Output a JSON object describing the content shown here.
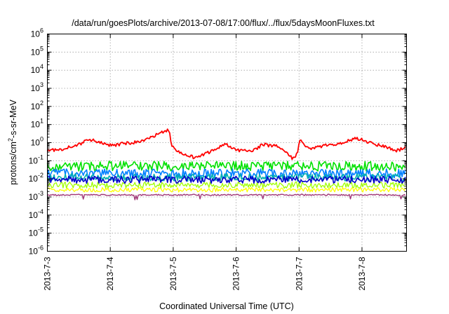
{
  "chart_data": {
    "type": "line",
    "title": "/data/run/goesPlots/archive/2013-07-08/17:00/flux/../flux/5daysMoonFluxes.txt",
    "xlabel": "Coordinated Universal Time (UTC)",
    "ylabel_parts": {
      "base": "protons/cm",
      "sup": "2",
      "rest": "-s-sr-MeV"
    },
    "y_scale": "log",
    "ylim": [
      1e-06,
      1000000.0
    ],
    "y_tick_labels": [
      {
        "base": "10",
        "exp": "-6",
        "value": 1e-06
      },
      {
        "base": "10",
        "exp": "-5",
        "value": 1e-05
      },
      {
        "base": "10",
        "exp": "-4",
        "value": 0.0001
      },
      {
        "base": "10",
        "exp": "-3",
        "value": 0.001
      },
      {
        "base": "10",
        "exp": "-2",
        "value": 0.01
      },
      {
        "base": "10",
        "exp": "-1",
        "value": 0.1
      },
      {
        "base": "10",
        "exp": "0",
        "value": 1
      },
      {
        "base": "10",
        "exp": "1",
        "value": 10
      },
      {
        "base": "10",
        "exp": "2",
        "value": 100
      },
      {
        "base": "10",
        "exp": "3",
        "value": 1000
      },
      {
        "base": "10",
        "exp": "4",
        "value": 10000
      },
      {
        "base": "10",
        "exp": "5",
        "value": 100000
      },
      {
        "base": "10",
        "exp": "6",
        "value": 1000000
      }
    ],
    "x_range": [
      "2013-07-03T00:00",
      "2013-07-08T17:00"
    ],
    "x_tick_labels": [
      {
        "label": "2013-7-3",
        "value": "2013-07-03T00:00"
      },
      {
        "label": "2013-7-4",
        "value": "2013-07-04T00:00"
      },
      {
        "label": "2013-7-5",
        "value": "2013-07-05T00:00"
      },
      {
        "label": "2013-7-6",
        "value": "2013-07-06T00:00"
      },
      {
        "label": "2013-7-7",
        "value": "2013-07-07T00:00"
      },
      {
        "label": "2013-7-8",
        "value": "2013-07-08T00:00"
      }
    ],
    "grid": true,
    "legend": "none",
    "series": [
      {
        "color": "#ff0000",
        "x": [
          "2013-07-03T00:00",
          "2013-07-03T06:00",
          "2013-07-03T12:00",
          "2013-07-03T16:00",
          "2013-07-03T20:00",
          "2013-07-04T00:00",
          "2013-07-04T06:00",
          "2013-07-04T12:00",
          "2013-07-04T18:00",
          "2013-07-04T21:00",
          "2013-07-04T22:30",
          "2013-07-04T23:30",
          "2013-07-05T03:00",
          "2013-07-05T08:00",
          "2013-07-05T14:00",
          "2013-07-05T20:00",
          "2013-07-06T00:00",
          "2013-07-06T06:00",
          "2013-07-06T10:00",
          "2013-07-06T16:00",
          "2013-07-06T22:00",
          "2013-07-06T23:40",
          "2013-07-07T00:15",
          "2013-07-07T04:00",
          "2013-07-07T10:00",
          "2013-07-07T16:00",
          "2013-07-07T22:00",
          "2013-07-08T04:00",
          "2013-07-08T09:00",
          "2013-07-08T13:00",
          "2013-07-08T17:00"
        ],
        "values": [
          0.35,
          0.45,
          0.8,
          1.5,
          1.0,
          0.7,
          0.9,
          1.2,
          3.0,
          4.5,
          5.0,
          0.6,
          0.25,
          0.15,
          0.3,
          0.9,
          0.4,
          0.3,
          0.8,
          0.6,
          0.12,
          0.35,
          1.5,
          0.45,
          0.7,
          0.9,
          1.8,
          0.9,
          0.6,
          0.35,
          0.55
        ]
      },
      {
        "color": "#00e000",
        "x": [
          "2013-07-03T00:00",
          "2013-07-08T17:00"
        ],
        "values": [
          0.05,
          0.05
        ]
      },
      {
        "color": "#0080ff",
        "x": [
          "2013-07-03T00:00",
          "2013-07-08T17:00"
        ],
        "values": [
          0.02,
          0.02
        ]
      },
      {
        "color": "#00b0b0",
        "x": [
          "2013-07-03T00:00",
          "2013-07-08T17:00"
        ],
        "values": [
          0.012,
          0.012
        ]
      },
      {
        "color": "#0000cc",
        "x": [
          "2013-07-03T00:00",
          "2013-07-08T17:00"
        ],
        "values": [
          0.009,
          0.009
        ]
      },
      {
        "color": "#a0ff00",
        "x": [
          "2013-07-03T00:00",
          "2013-07-08T17:00"
        ],
        "values": [
          0.0045,
          0.0045
        ]
      },
      {
        "color": "#ffff00",
        "x": [
          "2013-07-03T00:00",
          "2013-07-08T17:00"
        ],
        "values": [
          0.0025,
          0.0025
        ]
      },
      {
        "color": "#a03878",
        "x": [
          "2013-07-03T00:00",
          "2013-07-08T17:00"
        ],
        "values": [
          0.0013,
          0.0013
        ]
      }
    ]
  }
}
